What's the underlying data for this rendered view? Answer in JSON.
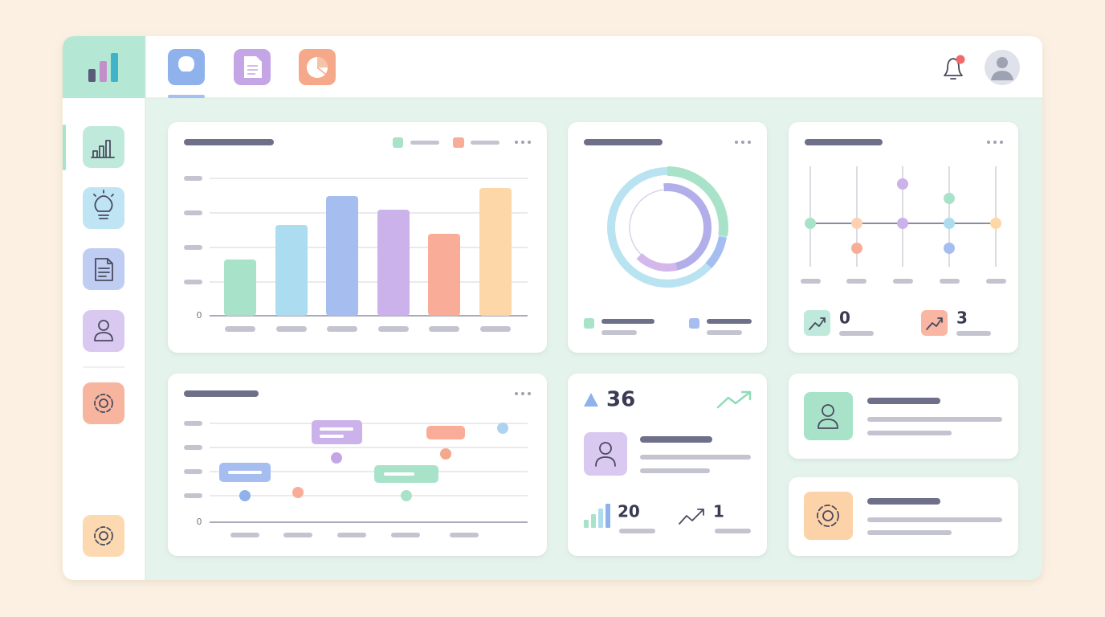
{
  "bar_panel": {
    "axis_label": "0"
  },
  "timeline_panel": {
    "axis_label": "0"
  },
  "trend_panel": {
    "stats": [
      0,
      3
    ]
  },
  "kpi_panel": {
    "main": 36,
    "bars": 20,
    "trend": 1
  }
}
